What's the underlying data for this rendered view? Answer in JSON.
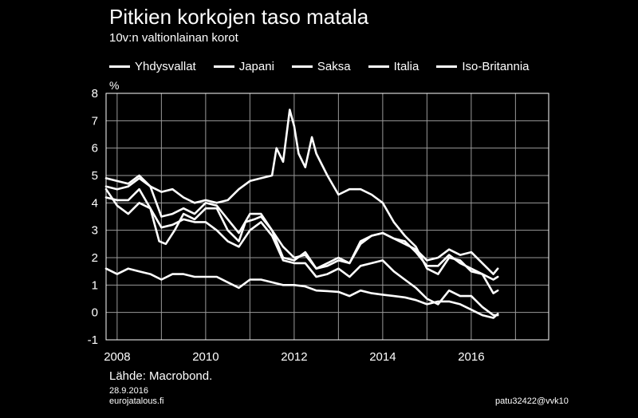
{
  "header": {
    "title": "Pitkien korkojen taso matala",
    "subtitle": "10v:n valtionlainan korot"
  },
  "footer": {
    "source": "Lähde: Macrobond.",
    "date": "28.9.2016",
    "site": "eurojatalous.fi",
    "code": "patu32422@vvk10"
  },
  "colors": {
    "background": "#000000",
    "lines": "#ffffff",
    "grid": "#9a9a9a"
  },
  "chart_data": {
    "type": "line",
    "unit": "%",
    "ylim": [
      -1,
      8
    ],
    "yticks": [
      -1,
      0,
      1,
      2,
      3,
      4,
      5,
      6,
      7,
      8
    ],
    "xlim": [
      2007.75,
      2017.75
    ],
    "xticks": [
      2008,
      2010,
      2012,
      2014,
      2016
    ],
    "x_tick_labels": [
      "2008",
      "2010",
      "2012",
      "2014",
      "2016"
    ],
    "grid": true,
    "legend_position": "top",
    "series": [
      {
        "name": "Yhdysvallat",
        "x": [
          2007.75,
          2008.0,
          2008.25,
          2008.5,
          2008.75,
          2008.95,
          2009.1,
          2009.3,
          2009.5,
          2009.75,
          2010.0,
          2010.25,
          2010.5,
          2010.75,
          2010.9,
          2011.1,
          2011.25,
          2011.5,
          2011.75,
          2012.0,
          2012.25,
          2012.5,
          2012.75,
          2013.0,
          2013.25,
          2013.5,
          2013.75,
          2014.0,
          2014.25,
          2014.5,
          2014.75,
          2015.0,
          2015.25,
          2015.5,
          2015.75,
          2016.0,
          2016.25,
          2016.5,
          2016.6
        ],
        "y": [
          4.5,
          3.9,
          3.6,
          4.0,
          3.8,
          2.6,
          2.5,
          3.0,
          3.6,
          3.4,
          3.8,
          3.8,
          3.0,
          2.6,
          3.3,
          3.4,
          3.5,
          3.0,
          2.0,
          1.9,
          2.2,
          1.6,
          1.7,
          1.9,
          1.8,
          2.6,
          2.8,
          2.9,
          2.7,
          2.5,
          2.3,
          1.9,
          2.0,
          2.3,
          2.1,
          2.2,
          1.8,
          1.4,
          1.6
        ]
      },
      {
        "name": "Japani",
        "x": [
          2007.75,
          2008.0,
          2008.25,
          2008.5,
          2008.75,
          2009.0,
          2009.25,
          2009.5,
          2009.75,
          2010.0,
          2010.25,
          2010.5,
          2010.75,
          2011.0,
          2011.25,
          2011.5,
          2011.75,
          2012.0,
          2012.25,
          2012.5,
          2012.75,
          2013.0,
          2013.25,
          2013.5,
          2013.75,
          2014.0,
          2014.25,
          2014.5,
          2014.75,
          2015.0,
          2015.25,
          2015.5,
          2015.75,
          2016.0,
          2016.25,
          2016.5,
          2016.6
        ],
        "y": [
          1.6,
          1.4,
          1.6,
          1.5,
          1.4,
          1.2,
          1.4,
          1.4,
          1.3,
          1.3,
          1.3,
          1.1,
          0.9,
          1.2,
          1.2,
          1.1,
          1.0,
          1.0,
          0.95,
          0.8,
          0.78,
          0.75,
          0.6,
          0.8,
          0.7,
          0.65,
          0.6,
          0.55,
          0.45,
          0.3,
          0.4,
          0.4,
          0.3,
          0.1,
          -0.1,
          -0.2,
          -0.05
        ]
      },
      {
        "name": "Saksa",
        "x": [
          2007.75,
          2008.0,
          2008.25,
          2008.5,
          2008.75,
          2009.0,
          2009.25,
          2009.5,
          2009.75,
          2010.0,
          2010.25,
          2010.5,
          2010.75,
          2011.0,
          2011.25,
          2011.5,
          2011.75,
          2012.0,
          2012.25,
          2012.5,
          2012.75,
          2013.0,
          2013.25,
          2013.5,
          2013.75,
          2014.0,
          2014.25,
          2014.5,
          2014.75,
          2015.0,
          2015.25,
          2015.5,
          2015.75,
          2016.0,
          2016.25,
          2016.5,
          2016.6
        ],
        "y": [
          4.2,
          4.1,
          4.1,
          4.5,
          3.8,
          3.1,
          3.2,
          3.4,
          3.3,
          3.3,
          3.0,
          2.6,
          2.4,
          3.0,
          3.3,
          2.8,
          1.9,
          1.8,
          1.8,
          1.3,
          1.4,
          1.6,
          1.3,
          1.7,
          1.8,
          1.9,
          1.5,
          1.2,
          0.9,
          0.5,
          0.3,
          0.8,
          0.6,
          0.6,
          0.2,
          -0.1,
          -0.1
        ]
      },
      {
        "name": "Italia",
        "x": [
          2007.75,
          2008.0,
          2008.25,
          2008.5,
          2008.75,
          2009.0,
          2009.25,
          2009.5,
          2009.75,
          2010.0,
          2010.25,
          2010.5,
          2010.75,
          2011.0,
          2011.25,
          2011.5,
          2011.6,
          2011.75,
          2011.9,
          2012.0,
          2012.1,
          2012.25,
          2012.4,
          2012.5,
          2012.75,
          2013.0,
          2013.25,
          2013.5,
          2013.75,
          2014.0,
          2014.25,
          2014.5,
          2014.75,
          2015.0,
          2015.25,
          2015.5,
          2015.75,
          2016.0,
          2016.25,
          2016.5,
          2016.6
        ],
        "y": [
          4.6,
          4.5,
          4.6,
          4.9,
          4.6,
          4.4,
          4.5,
          4.2,
          4.0,
          4.1,
          4.0,
          4.1,
          4.5,
          4.8,
          4.9,
          5.0,
          6.0,
          5.5,
          7.4,
          6.8,
          5.8,
          5.3,
          6.4,
          5.8,
          5.0,
          4.3,
          4.5,
          4.5,
          4.3,
          4.0,
          3.3,
          2.8,
          2.4,
          1.6,
          1.4,
          2.0,
          1.9,
          1.5,
          1.4,
          1.2,
          1.3
        ]
      },
      {
        "name": "Iso-Britannia",
        "x": [
          2007.75,
          2008.0,
          2008.25,
          2008.5,
          2008.75,
          2009.0,
          2009.25,
          2009.5,
          2009.75,
          2010.0,
          2010.25,
          2010.5,
          2010.75,
          2011.0,
          2011.25,
          2011.5,
          2011.75,
          2012.0,
          2012.25,
          2012.5,
          2012.75,
          2013.0,
          2013.25,
          2013.5,
          2013.75,
          2014.0,
          2014.25,
          2014.5,
          2014.75,
          2015.0,
          2015.25,
          2015.5,
          2015.75,
          2016.0,
          2016.25,
          2016.5,
          2016.6
        ],
        "y": [
          4.9,
          4.8,
          4.7,
          5.0,
          4.6,
          3.5,
          3.6,
          3.8,
          3.6,
          4.0,
          3.9,
          3.4,
          2.9,
          3.6,
          3.6,
          3.0,
          2.4,
          2.0,
          2.1,
          1.6,
          1.8,
          2.0,
          1.8,
          2.5,
          2.8,
          2.9,
          2.7,
          2.6,
          2.2,
          1.7,
          1.7,
          2.1,
          1.8,
          1.6,
          1.4,
          0.7,
          0.8
        ]
      }
    ]
  }
}
